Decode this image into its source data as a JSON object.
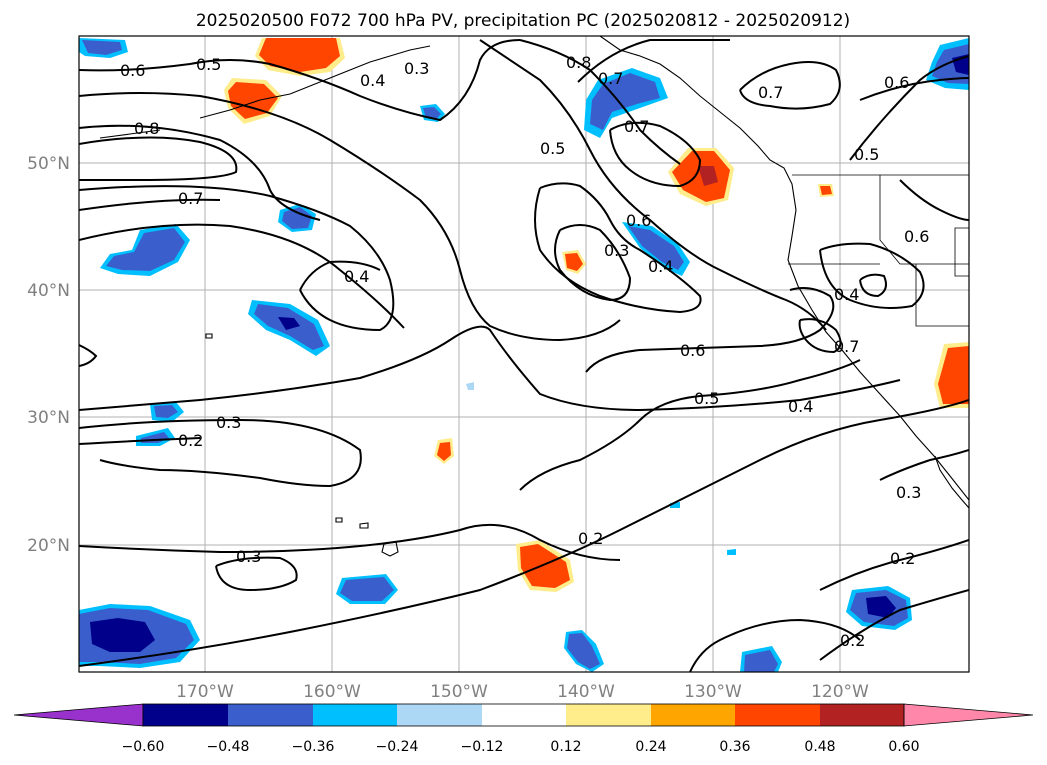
{
  "title": "2025020500 F072 700 hPa PV, precipitation PC (2025020812 - 2025020912)",
  "lat_labels": [
    "50°N",
    "40°N",
    "30°N",
    "20°N"
  ],
  "lon_labels": [
    "170°W",
    "160°W",
    "150°W",
    "140°W",
    "130°W",
    "120°W"
  ],
  "colorbar": {
    "ticks": [
      "−0.60",
      "−0.48",
      "−0.36",
      "−0.24",
      "−0.12",
      "0.12",
      "0.24",
      "0.36",
      "0.48",
      "0.60"
    ],
    "colors": [
      "#9932cc",
      "#00008b",
      "#3a5fcd",
      "#00bfff",
      "#add8f5",
      "#ffffff",
      "#ffec8b",
      "#ffa500",
      "#ff4500",
      "#b22222",
      "#ff88aa"
    ]
  },
  "contour_labels": [
    "0.6",
    "0.5",
    "0.4",
    "0.3",
    "0.8",
    "0.7",
    "0.8",
    "0.7",
    "0.7",
    "0.6",
    "0.5",
    "0.6",
    "0.5",
    "0.7",
    "0.6",
    "0.3",
    "0.4",
    "0.4",
    "0.7",
    "0.4",
    "0.6",
    "0.5",
    "0.4",
    "0.3",
    "0.2",
    "0.2",
    "0.3",
    "0.3",
    "0.2",
    "0.2"
  ],
  "precip_colors": {
    "neg_light": "#00bfff",
    "neg_mid": "#3a5fcd",
    "neg_dark": "#00008b",
    "pos_light": "#ffec8b",
    "pos_mid": "#ff4500",
    "pos_dark": "#b22222"
  }
}
